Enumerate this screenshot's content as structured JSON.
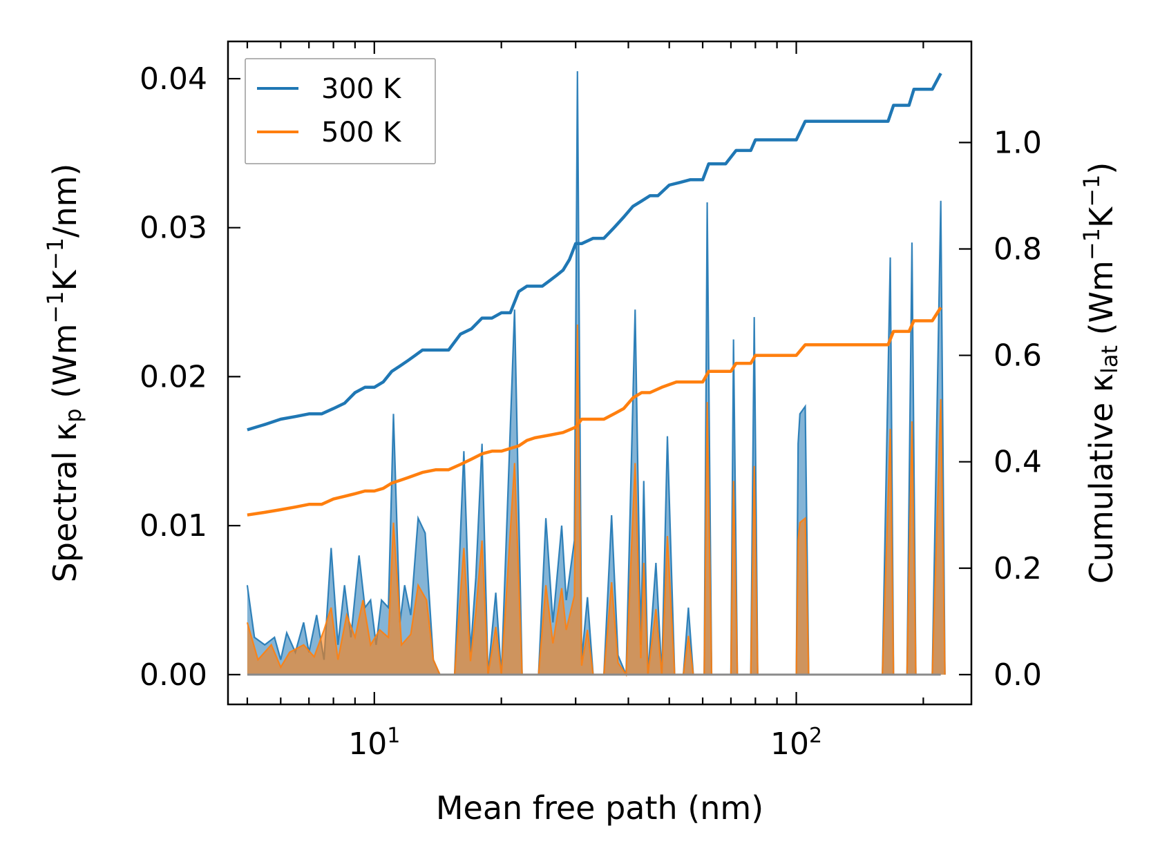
{
  "chart_data": {
    "type": "line",
    "title": "",
    "xlabel": "Mean free path (nm)",
    "xscale": "log",
    "xlim": [
      4.5,
      260
    ],
    "xticks": [
      {
        "value": 10,
        "base": "10",
        "exp": "1"
      },
      {
        "value": 100,
        "base": "10",
        "exp": "2"
      }
    ],
    "ylabel_left": {
      "prefix": "Spectral κ",
      "sub": "p",
      "mid": " (Wm",
      "sup1": "−1",
      "k": "K",
      "sup2": "−1",
      "suffix": "/nm)"
    },
    "ylim_left": [
      -0.002,
      0.0425
    ],
    "yticks_left": [
      {
        "value": 0.0,
        "label": "0.00"
      },
      {
        "value": 0.01,
        "label": "0.01"
      },
      {
        "value": 0.02,
        "label": "0.02"
      },
      {
        "value": 0.03,
        "label": "0.03"
      },
      {
        "value": 0.04,
        "label": "0.04"
      }
    ],
    "ylabel_right": {
      "prefix": "Cumulative κ",
      "sub": "lat",
      "mid": " (Wm",
      "sup1": "−1",
      "k": "K",
      "sup2": "−1",
      "suffix": ")"
    },
    "ylim_right": [
      -0.056,
      1.19
    ],
    "yticks_right": [
      {
        "value": 0.0,
        "label": "0.0"
      },
      {
        "value": 0.2,
        "label": "0.2"
      },
      {
        "value": 0.4,
        "label": "0.4"
      },
      {
        "value": 0.6,
        "label": "0.6"
      },
      {
        "value": 0.8,
        "label": "0.8"
      },
      {
        "value": 1.0,
        "label": "1.0"
      }
    ],
    "legend": {
      "position": "top-left"
    },
    "series": [
      {
        "name": "300 K",
        "color": "#1f77b4",
        "cumulative": [
          [
            5,
            0.46
          ],
          [
            5.5,
            0.47
          ],
          [
            6,
            0.48
          ],
          [
            6.5,
            0.485
          ],
          [
            7,
            0.49
          ],
          [
            7.5,
            0.49
          ],
          [
            8,
            0.5
          ],
          [
            8.5,
            0.51
          ],
          [
            9,
            0.53
          ],
          [
            9.5,
            0.54
          ],
          [
            10,
            0.54
          ],
          [
            10.5,
            0.55
          ],
          [
            11,
            0.57
          ],
          [
            11.5,
            0.58
          ],
          [
            12,
            0.59
          ],
          [
            12.5,
            0.6
          ],
          [
            13,
            0.61
          ],
          [
            14,
            0.61
          ],
          [
            15,
            0.61
          ],
          [
            16,
            0.64
          ],
          [
            17,
            0.65
          ],
          [
            18,
            0.67
          ],
          [
            19,
            0.67
          ],
          [
            20,
            0.68
          ],
          [
            21,
            0.68
          ],
          [
            22,
            0.72
          ],
          [
            23,
            0.73
          ],
          [
            24,
            0.73
          ],
          [
            25,
            0.73
          ],
          [
            26,
            0.74
          ],
          [
            27,
            0.75
          ],
          [
            28,
            0.76
          ],
          [
            29,
            0.78
          ],
          [
            30,
            0.81
          ],
          [
            31,
            0.81
          ],
          [
            33,
            0.82
          ],
          [
            35,
            0.82
          ],
          [
            37,
            0.84
          ],
          [
            39,
            0.86
          ],
          [
            41,
            0.88
          ],
          [
            43,
            0.89
          ],
          [
            45,
            0.9
          ],
          [
            47,
            0.9
          ],
          [
            50,
            0.92
          ],
          [
            53,
            0.925
          ],
          [
            56,
            0.93
          ],
          [
            60,
            0.93
          ],
          [
            62,
            0.96
          ],
          [
            68,
            0.96
          ],
          [
            72,
            0.985
          ],
          [
            78,
            0.985
          ],
          [
            80,
            1.005
          ],
          [
            90,
            1.005
          ],
          [
            100,
            1.005
          ],
          [
            105,
            1.04
          ],
          [
            120,
            1.04
          ],
          [
            150,
            1.04
          ],
          [
            165,
            1.04
          ],
          [
            170,
            1.07
          ],
          [
            185,
            1.07
          ],
          [
            190,
            1.1
          ],
          [
            210,
            1.1
          ],
          [
            220,
            1.13
          ]
        ],
        "spectral": [
          [
            5,
            0.006
          ],
          [
            5.2,
            0.0025
          ],
          [
            5.5,
            0.002
          ],
          [
            5.8,
            0.0025
          ],
          [
            6,
            0.001
          ],
          [
            6.2,
            0.0028
          ],
          [
            6.5,
            0.0015
          ],
          [
            6.8,
            0.0035
          ],
          [
            7,
            0.0015
          ],
          [
            7.3,
            0.004
          ],
          [
            7.6,
            0.001
          ],
          [
            7.9,
            0.0085
          ],
          [
            8.2,
            0.002
          ],
          [
            8.5,
            0.006
          ],
          [
            8.8,
            0.0025
          ],
          [
            9.2,
            0.008
          ],
          [
            9.5,
            0.0045
          ],
          [
            9.8,
            0.005
          ],
          [
            10.1,
            0.002
          ],
          [
            10.4,
            0.005
          ],
          [
            10.8,
            0.0045
          ],
          [
            11.1,
            0.0175
          ],
          [
            11.5,
            0.0035
          ],
          [
            11.8,
            0.006
          ],
          [
            12.2,
            0.004
          ],
          [
            12.7,
            0.0105
          ],
          [
            13.2,
            0.0095
          ],
          [
            13.8,
            0.001
          ],
          [
            14.3,
            0
          ],
          [
            15.5,
            0
          ],
          [
            16.3,
            0.015
          ],
          [
            16.9,
            0.0015
          ],
          [
            17.4,
            0.0065
          ],
          [
            18.0,
            0.0155
          ],
          [
            18.6,
            0
          ],
          [
            19.4,
            0.0055
          ],
          [
            20.0,
            0
          ],
          [
            21.5,
            0.0245
          ],
          [
            22.4,
            0
          ],
          [
            24.5,
            0
          ],
          [
            25.5,
            0.0105
          ],
          [
            26.5,
            0.0035
          ],
          [
            27.8,
            0.01
          ],
          [
            28.5,
            0.005
          ],
          [
            29.8,
            0.009
          ],
          [
            30.3,
            0.0405
          ],
          [
            31.0,
            0.001
          ],
          [
            32.0,
            0.0052
          ],
          [
            33.0,
            0
          ],
          [
            35.0,
            0
          ],
          [
            36.5,
            0.0107
          ],
          [
            37.8,
            0.0013
          ],
          [
            39.5,
            0
          ],
          [
            41.5,
            0.0245
          ],
          [
            42.8,
            0.002
          ],
          [
            43.5,
            0.013
          ],
          [
            44.5,
            0
          ],
          [
            46.5,
            0.0075
          ],
          [
            48.0,
            0
          ],
          [
            49.5,
            0.016
          ],
          [
            51.5,
            0
          ],
          [
            54.0,
            0
          ],
          [
            55.5,
            0.0045
          ],
          [
            57.0,
            0
          ],
          [
            60.5,
            0
          ],
          [
            61.5,
            0.0317
          ],
          [
            63.0,
            0
          ],
          [
            70.0,
            0
          ],
          [
            71.0,
            0.0225
          ],
          [
            72.5,
            0
          ],
          [
            78.0,
            0
          ],
          [
            79.5,
            0.024
          ],
          [
            81.0,
            0
          ],
          [
            100,
            0
          ],
          [
            101,
            0.0155
          ],
          [
            102,
            0.0175
          ],
          [
            105,
            0.018
          ],
          [
            107,
            0
          ],
          [
            160,
            0
          ],
          [
            167,
            0.028
          ],
          [
            170,
            0
          ],
          [
            183,
            0
          ],
          [
            188,
            0.029
          ],
          [
            192,
            0
          ],
          [
            210,
            0
          ],
          [
            220,
            0.0318
          ],
          [
            225,
            0
          ]
        ]
      },
      {
        "name": "500 K",
        "color": "#ff7f0e",
        "cumulative": [
          [
            5,
            0.3
          ],
          [
            5.5,
            0.305
          ],
          [
            6,
            0.31
          ],
          [
            6.5,
            0.315
          ],
          [
            7,
            0.32
          ],
          [
            7.5,
            0.32
          ],
          [
            8,
            0.33
          ],
          [
            8.5,
            0.335
          ],
          [
            9,
            0.34
          ],
          [
            9.5,
            0.345
          ],
          [
            10,
            0.345
          ],
          [
            10.5,
            0.35
          ],
          [
            11,
            0.36
          ],
          [
            11.5,
            0.365
          ],
          [
            12,
            0.37
          ],
          [
            12.5,
            0.375
          ],
          [
            13,
            0.38
          ],
          [
            14,
            0.385
          ],
          [
            15,
            0.385
          ],
          [
            16,
            0.395
          ],
          [
            17,
            0.405
          ],
          [
            18,
            0.415
          ],
          [
            19,
            0.42
          ],
          [
            20,
            0.42
          ],
          [
            21,
            0.425
          ],
          [
            22,
            0.43
          ],
          [
            23,
            0.44
          ],
          [
            24,
            0.445
          ],
          [
            26,
            0.45
          ],
          [
            28,
            0.455
          ],
          [
            30,
            0.465
          ],
          [
            31,
            0.48
          ],
          [
            33,
            0.48
          ],
          [
            35,
            0.48
          ],
          [
            37,
            0.49
          ],
          [
            39,
            0.5
          ],
          [
            41,
            0.52
          ],
          [
            43,
            0.53
          ],
          [
            45,
            0.53
          ],
          [
            48,
            0.54
          ],
          [
            52,
            0.55
          ],
          [
            56,
            0.55
          ],
          [
            60,
            0.55
          ],
          [
            62,
            0.57
          ],
          [
            70,
            0.57
          ],
          [
            72,
            0.585
          ],
          [
            78,
            0.585
          ],
          [
            80,
            0.6
          ],
          [
            100,
            0.6
          ],
          [
            105,
            0.62
          ],
          [
            150,
            0.62
          ],
          [
            165,
            0.62
          ],
          [
            170,
            0.645
          ],
          [
            185,
            0.645
          ],
          [
            190,
            0.665
          ],
          [
            210,
            0.665
          ],
          [
            220,
            0.69
          ]
        ],
        "spectral": [
          [
            5,
            0.0035
          ],
          [
            5.3,
            0.001
          ],
          [
            5.7,
            0.002
          ],
          [
            6,
            0.0005
          ],
          [
            6.3,
            0.0015
          ],
          [
            6.8,
            0.002
          ],
          [
            7.2,
            0.0012
          ],
          [
            7.6,
            0.003
          ],
          [
            7.9,
            0.0045
          ],
          [
            8.2,
            0.001
          ],
          [
            8.6,
            0.004
          ],
          [
            9.0,
            0.0025
          ],
          [
            9.4,
            0.005
          ],
          [
            9.8,
            0.002
          ],
          [
            10.3,
            0.003
          ],
          [
            10.8,
            0.0025
          ],
          [
            11.1,
            0.0102
          ],
          [
            11.6,
            0.002
          ],
          [
            12.2,
            0.0027
          ],
          [
            12.7,
            0.006
          ],
          [
            13.3,
            0.005
          ],
          [
            13.8,
            0.001
          ],
          [
            14.3,
            0
          ],
          [
            15.5,
            0
          ],
          [
            16.3,
            0.0085
          ],
          [
            16.9,
            0.0009
          ],
          [
            17.4,
            0.0042
          ],
          [
            18.0,
            0.009
          ],
          [
            18.6,
            0
          ],
          [
            19.4,
            0.0032
          ],
          [
            20.0,
            0
          ],
          [
            21.5,
            0.0142
          ],
          [
            22.4,
            0
          ],
          [
            24.5,
            0
          ],
          [
            25.5,
            0.006
          ],
          [
            26.5,
            0.0021
          ],
          [
            27.8,
            0.0058
          ],
          [
            28.5,
            0.003
          ],
          [
            29.8,
            0.0053
          ],
          [
            30.3,
            0.0235
          ],
          [
            31.0,
            0.0006
          ],
          [
            32.0,
            0.003
          ],
          [
            33.0,
            0
          ],
          [
            35.0,
            0
          ],
          [
            36.5,
            0.0062
          ],
          [
            37.8,
            0.0008
          ],
          [
            39.5,
            0
          ],
          [
            41.5,
            0.0142
          ],
          [
            42.8,
            0.0011
          ],
          [
            43.5,
            0.0075
          ],
          [
            44.5,
            0
          ],
          [
            46.5,
            0.0044
          ],
          [
            48.0,
            0
          ],
          [
            49.5,
            0.0093
          ],
          [
            51.5,
            0
          ],
          [
            54.0,
            0
          ],
          [
            55.5,
            0.0026
          ],
          [
            57.0,
            0
          ],
          [
            60.5,
            0
          ],
          [
            61.5,
            0.0183
          ],
          [
            63.0,
            0
          ],
          [
            70.0,
            0
          ],
          [
            71.0,
            0.013
          ],
          [
            72.5,
            0
          ],
          [
            78.0,
            0
          ],
          [
            79.5,
            0.014
          ],
          [
            81.0,
            0
          ],
          [
            100,
            0
          ],
          [
            101,
            0.009
          ],
          [
            102,
            0.0102
          ],
          [
            105,
            0.0105
          ],
          [
            107,
            0
          ],
          [
            160,
            0
          ],
          [
            167,
            0.0165
          ],
          [
            170,
            0
          ],
          [
            183,
            0
          ],
          [
            188,
            0.017
          ],
          [
            192,
            0
          ],
          [
            210,
            0
          ],
          [
            220,
            0.0185
          ],
          [
            225,
            0
          ]
        ]
      }
    ]
  }
}
